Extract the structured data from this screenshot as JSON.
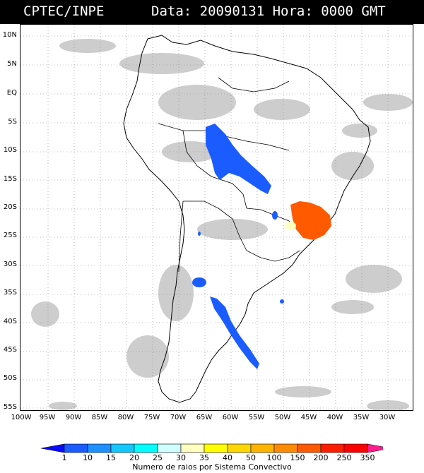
{
  "header": {
    "left": "CPTEC/INPE",
    "right": "Data: 20090131 Hora: 0000 GMT"
  },
  "map": {
    "lat_labels": [
      "10N",
      "5N",
      "EQ",
      "5S",
      "10S",
      "15S",
      "20S",
      "25S",
      "30S",
      "35S",
      "40S",
      "45S",
      "50S",
      "55S"
    ],
    "lon_labels": [
      "100W",
      "95W",
      "90W",
      "85W",
      "80W",
      "75W",
      "70W",
      "65W",
      "60W",
      "55W",
      "50W",
      "45W",
      "40W",
      "35W",
      "30W"
    ],
    "grid": "dotted",
    "land_color": "#ffffff",
    "boundary_color": "#000000",
    "cloud_color": "#c8c8c8"
  },
  "legend": {
    "levels": [
      "1",
      "10",
      "15",
      "20",
      "25",
      "30",
      "35",
      "40",
      "50",
      "100",
      "150",
      "200",
      "250",
      "350"
    ],
    "colors": [
      "#0a0aff",
      "#1a5cff",
      "#1e90ff",
      "#14c8ff",
      "#00ffff",
      "#cfffff",
      "#ffffc0",
      "#ffff00",
      "#ffd700",
      "#ffb400",
      "#ff8c00",
      "#ff5a00",
      "#ff1e00",
      "#ff0000",
      "#ff1e8c"
    ],
    "title": "Numero de raios por Sistema Convectivo"
  },
  "convective_systems": [
    {
      "region": "Central Brazil band",
      "color": "#1a5cff"
    },
    {
      "region": "Southeast Brazil cluster",
      "color": "#ff5a00"
    },
    {
      "region": "Argentina band",
      "color": "#1a5cff"
    }
  ]
}
